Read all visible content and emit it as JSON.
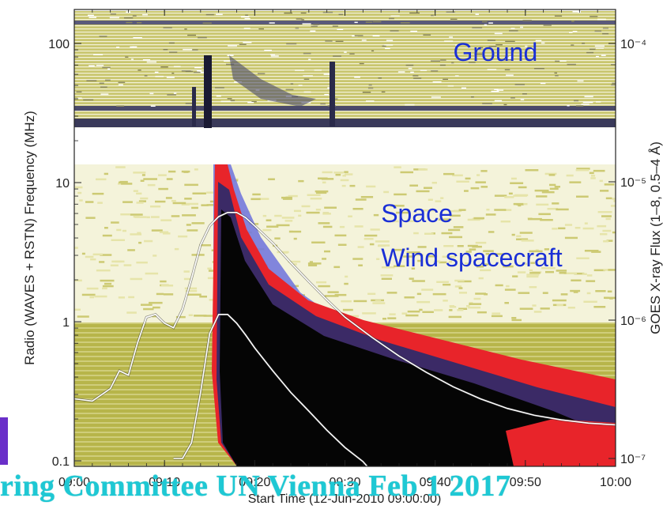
{
  "chart_data": {
    "type": "heatmap",
    "title": "",
    "xlabel": "Start Time (12-Jun-2010 09:00:00)",
    "ylabel_left": "Radio (WAVES + RSTN) Frequency (MHz)",
    "ylabel_right": "GOES X-ray Flux (1–8, 0.5–4 Å)",
    "xlim": [
      "09:00",
      "10:00"
    ],
    "ylim_left_mhz": [
      0.08,
      200
    ],
    "ylim_right_flux": [
      1e-07,
      0.0001
    ],
    "yscale": "log",
    "x_tick_labels": [
      "09:00",
      "09:10",
      "09:20",
      "09:30",
      "09:40",
      "09:50",
      "10:00"
    ],
    "y_left_tick_labels": [
      "0.1",
      "1",
      "10",
      "100"
    ],
    "y_left_tick_values": [
      0.1,
      1,
      10,
      100
    ],
    "y_right_tick_labels": [
      "10⁻⁷",
      "10⁻⁶",
      "10⁻⁵",
      "10⁻⁴"
    ],
    "y_right_tick_values": [
      1e-07,
      1e-06,
      1e-05,
      0.0001
    ],
    "annotations": [
      {
        "text": "Ground",
        "x": "09:42",
        "y_mhz": 75,
        "color": "#1a2fd6"
      },
      {
        "text": "Space",
        "x": "09:34",
        "y_mhz": 5.2,
        "color": "#1a2fd6"
      },
      {
        "text": "Wind spacecraft",
        "x": "09:34",
        "y_mhz": 2.5,
        "color": "#1a2fd6"
      }
    ],
    "series": [
      {
        "name": "",
        "color": "#ffffff",
        "x_minutes": [
          0,
          2,
          4,
          5,
          6,
          7,
          8,
          9,
          10,
          11,
          12,
          13,
          14,
          15,
          16,
          17,
          18,
          19,
          20,
          22,
          24,
          26,
          28,
          30,
          33,
          36,
          39,
          42,
          45,
          48,
          51,
          54,
          57,
          60
        ],
        "flux": [
          2.7e-07,
          2.6e-07,
          3.2e-07,
          4.3e-07,
          4e-07,
          6.8e-07,
          1.05e-06,
          1.1e-06,
          9.5e-07,
          8.8e-07,
          1.2e-06,
          2e-06,
          3.5e-06,
          4.8e-06,
          5.6e-06,
          6e-06,
          6e-06,
          5.5e-06,
          4.8e-06,
          3.6e-06,
          2.6e-06,
          1.9e-06,
          1.4e-06,
          1.05e-06,
          7.5e-07,
          5.5e-07,
          4.2e-07,
          3.3e-07,
          2.7e-07,
          2.3e-07,
          2.05e-07,
          1.9e-07,
          1.8e-07,
          1.75e-07
        ]
      },
      {
        "name": "",
        "color": "#ffffff",
        "x_minutes": [
          11,
          12,
          13,
          14,
          15,
          16,
          17,
          18,
          19,
          20,
          22,
          24,
          26,
          28,
          30,
          32,
          33
        ],
        "flux": [
          1e-07,
          1e-07,
          1.3e-07,
          3e-07,
          8e-07,
          1.1e-06,
          1.1e-06,
          9.5e-07,
          7.8e-07,
          6.3e-07,
          4.3e-07,
          3e-07,
          2.2e-07,
          1.6e-07,
          1.2e-07,
          9.5e-08,
          8e-08
        ]
      }
    ],
    "colors": {
      "background": "#fafaf0",
      "olive": "#a5a32a",
      "olive_light": "#d8d68a",
      "blue_burst": "#6f74d9",
      "red_burst": "#e8242a",
      "black_core": "#050505",
      "axis": "#222222"
    },
    "grid": false,
    "legend": "none"
  },
  "footer": {
    "text": "ring Committee UN Vienna Feb 1 2017"
  }
}
